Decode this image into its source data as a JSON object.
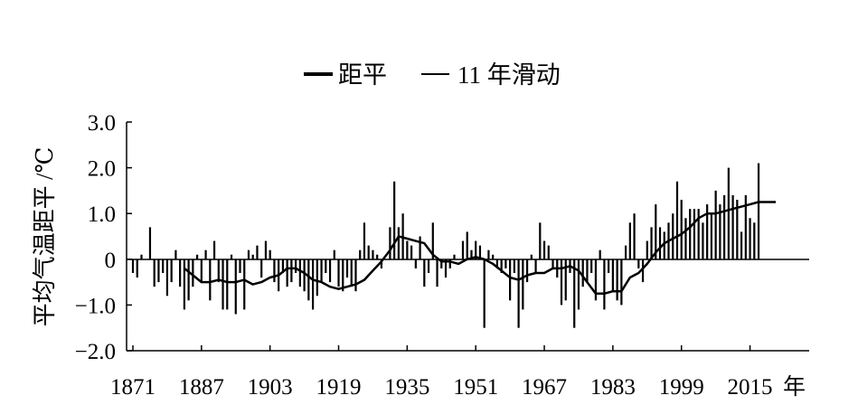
{
  "chart_data": {
    "type": "bar",
    "legend": {
      "placement": "top-center",
      "entries": [
        {
          "label": "距平",
          "style": "thick-line"
        },
        {
          "label": "11 年滑动",
          "style": "thin-line"
        }
      ]
    },
    "ylabel": "平均气温距平 /℃",
    "xlabel": "年",
    "ylim": [
      -2.0,
      3.0
    ],
    "yticks": [
      "3.0",
      "2.0",
      "1.0",
      "0",
      "−1.0",
      "−2.0"
    ],
    "ytick_values": [
      3,
      2,
      1,
      0,
      -1,
      -2
    ],
    "xlim": [
      1871,
      2022
    ],
    "xticks": [
      "1871",
      "1887",
      "1903",
      "1919",
      "1935",
      "1951",
      "1967",
      "1983",
      "1999",
      "2015"
    ],
    "xtick_values": [
      1871,
      1887,
      1903,
      1919,
      1935,
      1951,
      1967,
      1983,
      1999,
      2015
    ],
    "grid": false,
    "series": [
      {
        "key": "anomaly",
        "x_start": 1871,
        "values": [
          -0.3,
          -0.4,
          0.1,
          0.0,
          0.7,
          -0.6,
          -0.5,
          -0.3,
          -0.8,
          -0.5,
          0.2,
          -0.6,
          -1.1,
          -0.9,
          -0.6,
          0.1,
          -0.5,
          0.2,
          -0.9,
          0.4,
          -0.5,
          -1.1,
          -1.1,
          0.1,
          -1.2,
          -0.3,
          -1.1,
          0.2,
          0.1,
          0.3,
          -0.4,
          0.4,
          0.2,
          -0.5,
          -0.7,
          -0.3,
          -0.6,
          -0.5,
          -0.3,
          -0.6,
          -0.7,
          -0.9,
          -1.1,
          -0.8,
          -0.5,
          -0.3,
          -0.5,
          0.2,
          -0.6,
          -0.7,
          -0.4,
          -0.6,
          -0.7,
          0.2,
          0.8,
          0.3,
          0.2,
          0.1,
          -0.2,
          0.0,
          0.7,
          1.7,
          0.7,
          1.0,
          0.4,
          0.3,
          -0.2,
          0.5,
          -0.6,
          -0.3,
          0.8,
          -0.6,
          -0.2,
          -0.4,
          -0.2,
          0.1,
          0.0,
          0.4,
          0.6,
          0.2,
          0.4,
          0.3,
          -1.5,
          0.2,
          0.1,
          -0.2,
          -0.3,
          -0.2,
          -0.9,
          -0.3,
          -1.5,
          -1.1,
          -0.5,
          0.1,
          -0.3,
          0.8,
          0.4,
          0.3,
          -0.2,
          -0.4,
          -1.0,
          -0.9,
          -0.3,
          -1.5,
          -1.1,
          -0.6,
          -0.5,
          -0.3,
          -0.9,
          0.2,
          -1.1,
          -0.3,
          -0.7,
          -0.9,
          -1.0,
          0.3,
          0.8,
          1.0,
          -0.2,
          -0.5,
          0.4,
          0.7,
          1.2,
          0.7,
          0.6,
          0.8,
          1.0,
          1.7,
          1.3,
          0.9,
          1.1,
          1.1,
          1.1,
          0.8,
          1.2,
          1.0,
          1.5,
          1.2,
          1.4,
          2.0,
          1.4,
          1.3,
          0.6,
          1.4,
          0.9,
          0.8,
          2.1
        ]
      },
      {
        "key": "moving_average_11yr",
        "points": [
          [
            1883,
            -0.2
          ],
          [
            1885,
            -0.35
          ],
          [
            1887,
            -0.5
          ],
          [
            1889,
            -0.5
          ],
          [
            1891,
            -0.45
          ],
          [
            1893,
            -0.5
          ],
          [
            1895,
            -0.5
          ],
          [
            1897,
            -0.45
          ],
          [
            1899,
            -0.55
          ],
          [
            1901,
            -0.5
          ],
          [
            1903,
            -0.4
          ],
          [
            1905,
            -0.35
          ],
          [
            1907,
            -0.2
          ],
          [
            1909,
            -0.2
          ],
          [
            1911,
            -0.3
          ],
          [
            1913,
            -0.45
          ],
          [
            1915,
            -0.5
          ],
          [
            1917,
            -0.6
          ],
          [
            1919,
            -0.65
          ],
          [
            1921,
            -0.6
          ],
          [
            1923,
            -0.55
          ],
          [
            1925,
            -0.45
          ],
          [
            1927,
            -0.25
          ],
          [
            1929,
            -0.05
          ],
          [
            1931,
            0.2
          ],
          [
            1933,
            0.5
          ],
          [
            1935,
            0.45
          ],
          [
            1937,
            0.4
          ],
          [
            1939,
            0.35
          ],
          [
            1941,
            0.1
          ],
          [
            1943,
            -0.05
          ],
          [
            1945,
            -0.05
          ],
          [
            1947,
            -0.1
          ],
          [
            1949,
            0.0
          ],
          [
            1951,
            0.05
          ],
          [
            1953,
            0.0
          ],
          [
            1955,
            -0.1
          ],
          [
            1957,
            -0.25
          ],
          [
            1959,
            -0.4
          ],
          [
            1961,
            -0.45
          ],
          [
            1963,
            -0.35
          ],
          [
            1965,
            -0.3
          ],
          [
            1967,
            -0.3
          ],
          [
            1969,
            -0.2
          ],
          [
            1971,
            -0.2
          ],
          [
            1973,
            -0.15
          ],
          [
            1975,
            -0.25
          ],
          [
            1977,
            -0.5
          ],
          [
            1979,
            -0.75
          ],
          [
            1981,
            -0.75
          ],
          [
            1983,
            -0.7
          ],
          [
            1985,
            -0.7
          ],
          [
            1987,
            -0.4
          ],
          [
            1989,
            -0.3
          ],
          [
            1991,
            -0.1
          ],
          [
            1993,
            0.15
          ],
          [
            1995,
            0.35
          ],
          [
            1997,
            0.45
          ],
          [
            1999,
            0.55
          ],
          [
            2001,
            0.7
          ],
          [
            2003,
            0.9
          ],
          [
            2005,
            1.0
          ],
          [
            2007,
            1.0
          ],
          [
            2009,
            1.05
          ],
          [
            2011,
            1.1
          ],
          [
            2013,
            1.15
          ],
          [
            2015,
            1.2
          ],
          [
            2017,
            1.25
          ],
          [
            2019,
            1.25
          ],
          [
            2021,
            1.25
          ]
        ]
      }
    ]
  }
}
